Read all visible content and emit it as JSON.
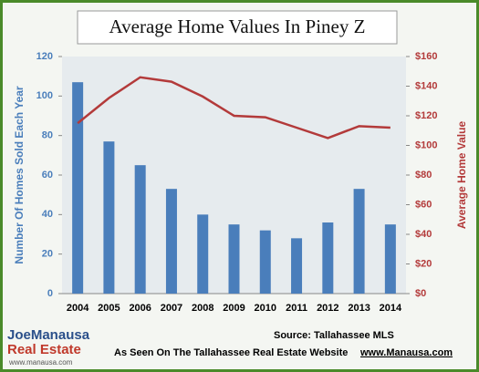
{
  "chart_data": {
    "type": "bar-line",
    "title": "Average Home Values In Piney Z",
    "ylabel": "Number Of Homes Sold Each Year",
    "y2label": "Average Home Value",
    "categories": [
      "2004",
      "2005",
      "2006",
      "2007",
      "2008",
      "2009",
      "2010",
      "2011",
      "2012",
      "2013",
      "2014"
    ],
    "series": [
      {
        "name": "Number Of Homes Sold Each Year",
        "color": "#4a7ebb",
        "values": [
          107,
          77,
          65,
          53,
          40,
          35,
          32,
          28,
          36,
          53,
          35
        ]
      },
      {
        "name": "Average Home Value",
        "color": "#b33a3a",
        "axis": "y2",
        "values": [
          115,
          132,
          146,
          143,
          133,
          120,
          119,
          112,
          105,
          113,
          112
        ]
      }
    ],
    "ylim": [
      0,
      120
    ],
    "yticks": [
      0,
      20,
      40,
      60,
      80,
      100,
      120
    ],
    "y2lim": [
      0,
      160
    ],
    "y2ticks": [
      {
        "value": 0,
        "label": "$0"
      },
      {
        "value": 20,
        "label": "$20"
      },
      {
        "value": 40,
        "label": "$40"
      },
      {
        "value": 60,
        "label": "$60"
      },
      {
        "value": 80,
        "label": "$80"
      },
      {
        "value": 100,
        "label": "$100"
      },
      {
        "value": 120,
        "label": "$120"
      },
      {
        "value": 140,
        "label": "$140"
      },
      {
        "value": 160,
        "label": "$160"
      }
    ],
    "source": "Source: Tallahassee MLS",
    "footer": "As Seen On The Tallahassee Real Estate Website",
    "website": "www.Manausa.com",
    "logo": {
      "name": "JoeManausa",
      "sub": "Real Estate",
      "url": "www.manausa.com"
    }
  }
}
